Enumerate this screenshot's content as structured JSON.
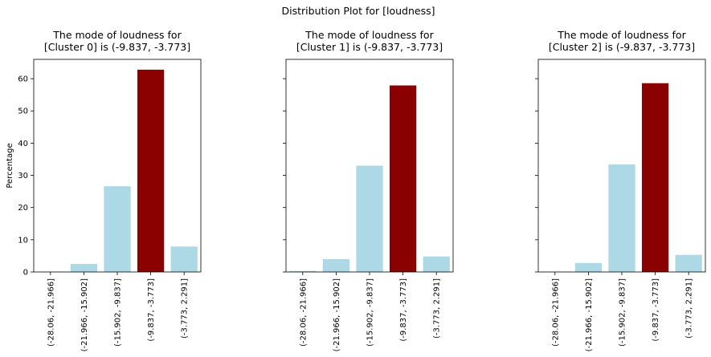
{
  "suptitle": "Distribution Plot for [loudness]",
  "chart_data": [
    {
      "type": "bar",
      "title_line1": "The mode of loudness for",
      "title_line2": "[Cluster 0] is (-9.837, -3.773]",
      "ylabel": "Percentage",
      "categories": [
        "(-28.06, -21.966]",
        "(-21.966, -15.902]",
        "(-15.902, -9.837]",
        "(-9.837, -3.773]",
        "(-3.773, 2.291]"
      ],
      "values": [
        0.1,
        2.5,
        26.6,
        62.8,
        7.9
      ],
      "highlight_index": 3,
      "ylim": [
        0,
        66
      ],
      "yticks": [
        "0",
        "10",
        "20",
        "30",
        "40",
        "50",
        "60"
      ],
      "grid": false
    },
    {
      "type": "bar",
      "title_line1": "The mode of loudness for",
      "title_line2": "[Cluster 1] is (-9.837, -3.773]",
      "ylabel": "",
      "categories": [
        "(-28.06, -21.966]",
        "(-21.966, -15.902]",
        "(-15.902, -9.837]",
        "(-9.837, -3.773]",
        "(-3.773, 2.291]"
      ],
      "values": [
        0.3,
        4.0,
        33.0,
        57.9,
        4.8
      ],
      "highlight_index": 3,
      "ylim": [
        0,
        66
      ],
      "yticks": [
        "",
        "",
        "",
        "",
        "",
        "",
        ""
      ],
      "grid": false
    },
    {
      "type": "bar",
      "title_line1": "The mode of loudness for",
      "title_line2": "[Cluster 2] is (-9.837, -3.773]",
      "ylabel": "",
      "categories": [
        "(-28.06, -21.966]",
        "(-21.966, -15.902]",
        "(-15.902, -9.837]",
        "(-9.837, -3.773]",
        "(-3.773, 2.291]"
      ],
      "values": [
        0.1,
        2.8,
        33.4,
        58.6,
        5.3
      ],
      "highlight_index": 3,
      "ylim": [
        0,
        66
      ],
      "yticks": [
        "",
        "",
        "",
        "",
        "",
        "",
        ""
      ],
      "grid": false
    }
  ],
  "colors": {
    "bar": "#add8e6",
    "highlight": "#8b0000"
  }
}
